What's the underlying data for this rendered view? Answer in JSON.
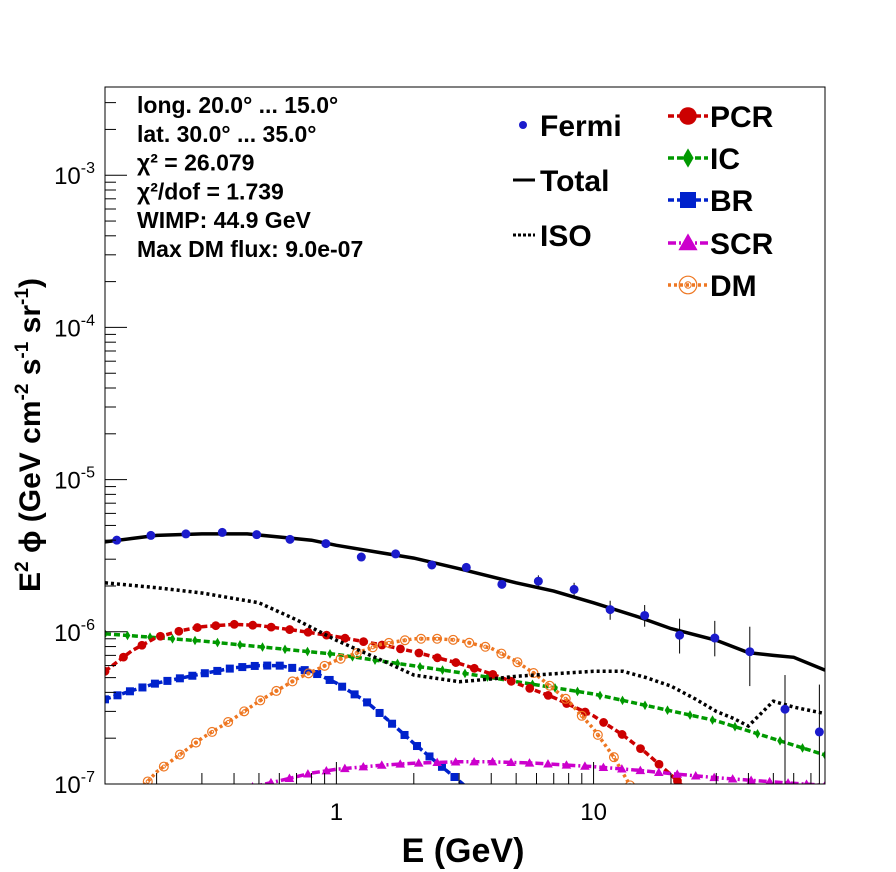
{
  "chart_data": {
    "type": "line",
    "xlabel": "E (GeV)",
    "ylabel_parts": [
      "E",
      "2",
      " ϕ (GeV cm",
      "-2",
      " s",
      "-1",
      " sr",
      "-1",
      ")"
    ],
    "xscale": "log",
    "yscale": "log",
    "xlim": [
      0.126,
      79.4
    ],
    "ylim": [
      1e-07,
      0.0038
    ],
    "x_ticks": [
      {
        "value": 1,
        "label": "1"
      },
      {
        "value": 10,
        "label": "10"
      }
    ],
    "y_ticks": [
      {
        "value": 1e-07,
        "base": "10",
        "exp": "-7"
      },
      {
        "value": 1e-06,
        "base": "10",
        "exp": "-6"
      },
      {
        "value": 1e-05,
        "base": "10",
        "exp": "-5"
      },
      {
        "value": 0.0001,
        "base": "10",
        "exp": "-4"
      },
      {
        "value": 0.001,
        "base": "10",
        "exp": "-3"
      }
    ],
    "info_lines": [
      "long. 20.0° ... 15.0°",
      "lat. 30.0° ... 35.0°",
      "χ² = 26.079",
      "χ²/dof = 1.739",
      "WIMP: 44.9 GeV",
      "Max DM flux: 9.0e-07"
    ],
    "legend": [
      {
        "label": "Fermi",
        "key": "fermi"
      },
      {
        "label": "Total",
        "key": "total"
      },
      {
        "label": "ISO",
        "key": "iso"
      },
      {
        "label": "PCR",
        "key": "pcr"
      },
      {
        "label": "IC",
        "key": "ic"
      },
      {
        "label": "BR",
        "key": "br"
      },
      {
        "label": "SCR",
        "key": "scr"
      },
      {
        "label": "DM",
        "key": "dm"
      }
    ],
    "data_points": {
      "name": "Fermi",
      "color": "#1b1bcc",
      "points": [
        {
          "x": 0.14,
          "y": 4e-06,
          "yerr": [
            4e-06,
            4e-06
          ]
        },
        {
          "x": 0.19,
          "y": 4.3e-06,
          "yerr": [
            4.3e-06,
            4.3e-06
          ]
        },
        {
          "x": 0.26,
          "y": 4.4e-06,
          "yerr": [
            4.4e-06,
            4.4e-06
          ]
        },
        {
          "x": 0.36,
          "y": 4.5e-06,
          "yerr": [
            4.5e-06,
            4.5e-06
          ]
        },
        {
          "x": 0.49,
          "y": 4.35e-06,
          "yerr": [
            4.35e-06,
            4.35e-06
          ]
        },
        {
          "x": 0.66,
          "y": 4.05e-06,
          "yerr": [
            4.05e-06,
            4.05e-06
          ]
        },
        {
          "x": 0.91,
          "y": 3.8e-06,
          "yerr": [
            3.8e-06,
            3.8e-06
          ]
        },
        {
          "x": 1.25,
          "y": 3.1e-06,
          "yerr": [
            3e-06,
            3.2e-06
          ]
        },
        {
          "x": 1.7,
          "y": 3.25e-06,
          "yerr": [
            3.15e-06,
            3.35e-06
          ]
        },
        {
          "x": 2.35,
          "y": 2.75e-06,
          "yerr": [
            2.65e-06,
            2.85e-06
          ]
        },
        {
          "x": 3.2,
          "y": 2.65e-06,
          "yerr": [
            2.55e-06,
            2.8e-06
          ]
        },
        {
          "x": 4.4,
          "y": 2.05e-06,
          "yerr": [
            1.95e-06,
            2.15e-06
          ]
        },
        {
          "x": 6.1,
          "y": 2.15e-06,
          "yerr": [
            1.95e-06,
            2.35e-06
          ]
        },
        {
          "x": 8.4,
          "y": 1.9e-06,
          "yerr": [
            1.7e-06,
            2.1e-06
          ]
        },
        {
          "x": 11.6,
          "y": 1.4e-06,
          "yerr": [
            1.2e-06,
            1.6e-06
          ]
        },
        {
          "x": 15.8,
          "y": 1.28e-06,
          "yerr": [
            1.08e-06,
            1.5e-06
          ]
        },
        {
          "x": 21.6,
          "y": 9.5e-07,
          "yerr": [
            7.2e-07,
            1.22e-06
          ]
        },
        {
          "x": 29.6,
          "y": 9.1e-07,
          "yerr": [
            6.9e-07,
            1.18e-06
          ]
        },
        {
          "x": 40.5,
          "y": 7.4e-07,
          "yerr": [
            4.4e-07,
            1.08e-06
          ]
        },
        {
          "x": 55.5,
          "y": 3.1e-07,
          "yerr": [
            1e-07,
            5.2e-07
          ]
        },
        {
          "x": 75.5,
          "y": 2.2e-07,
          "yerr": [
            1e-07,
            4.5e-07
          ]
        }
      ]
    },
    "series": [
      {
        "name": "Total",
        "key": "total",
        "color": "#000000",
        "style": "solid",
        "x": [
          0.126,
          0.16,
          0.2,
          0.3,
          0.45,
          0.6,
          0.8,
          1.0,
          1.5,
          2.0,
          3.0,
          5.0,
          7.0,
          10.0,
          15.0,
          20.0,
          30.0,
          40.0,
          50.0,
          60.0,
          79.4
        ],
        "y": [
          3.9e-06,
          4.1e-06,
          4.3e-06,
          4.4e-06,
          4.4e-06,
          4.2e-06,
          4e-06,
          3.7e-06,
          3.3e-06,
          3.05e-06,
          2.6e-06,
          2.1e-06,
          1.85e-06,
          1.55e-06,
          1.25e-06,
          1.05e-06,
          8.8e-07,
          7.3e-07,
          7e-07,
          6.8e-07,
          5.6e-07
        ]
      },
      {
        "name": "ISO",
        "key": "iso",
        "color": "#000000",
        "style": "dotted",
        "x": [
          0.126,
          0.2,
          0.3,
          0.5,
          0.7,
          1.0,
          1.5,
          2.0,
          3.0,
          4.0,
          5.0,
          7.0,
          10.0,
          13.0,
          16.0,
          20.0,
          25.0,
          30.0,
          35.0,
          40.0,
          50.0,
          60.0,
          79.4
        ],
        "y": [
          2.1e-06,
          1.95e-06,
          1.8e-06,
          1.55e-06,
          1.2e-06,
          8.8e-07,
          6.5e-07,
          5.2e-07,
          4.7e-07,
          4.9e-07,
          5.1e-07,
          5.3e-07,
          5.5e-07,
          5.5e-07,
          5e-07,
          4.4e-07,
          3.6e-07,
          3e-07,
          2.7e-07,
          2.4e-07,
          3.5e-07,
          3.2e-07,
          2.9e-07
        ]
      },
      {
        "name": "PCR",
        "key": "pcr",
        "color": "#cc0000",
        "style": "dashed",
        "x": [
          0.126,
          0.16,
          0.2,
          0.25,
          0.3,
          0.4,
          0.5,
          0.7,
          1.0,
          1.5,
          2.0,
          3.0,
          4.0,
          5.0,
          7.0,
          10.0,
          13.0,
          16.0,
          20.0,
          25.0
        ],
        "y": [
          5.5e-07,
          7.5e-07,
          9.2e-07,
          1.02e-06,
          1.08e-06,
          1.12e-06,
          1.1e-06,
          1.02e-06,
          9.3e-07,
          8.2e-07,
          7.4e-07,
          6.2e-07,
          5.3e-07,
          4.6e-07,
          3.7e-07,
          2.8e-07,
          2.1e-07,
          1.6e-07,
          1.15e-07,
          8e-08
        ]
      },
      {
        "name": "IC",
        "key": "ic",
        "color": "#009900",
        "style": "dashed",
        "x": [
          0.126,
          0.3,
          1.0,
          3.0,
          10.0,
          30.0,
          79.4
        ],
        "y": [
          9.7e-07,
          8.7e-07,
          7.1e-07,
          5.4e-07,
          3.9e-07,
          2.6e-07,
          1.55e-07
        ]
      },
      {
        "name": "BR",
        "key": "br",
        "color": "#0022cc",
        "style": "dashed",
        "x": [
          0.126,
          0.16,
          0.2,
          0.3,
          0.4,
          0.5,
          0.6,
          0.8,
          1.0,
          1.3,
          1.6,
          2.0,
          2.5,
          3.0,
          3.6,
          4.5
        ],
        "y": [
          3.6e-07,
          4.1e-07,
          4.6e-07,
          5.3e-07,
          5.8e-07,
          6e-07,
          6e-07,
          5.5e-07,
          4.6e-07,
          3.5e-07,
          2.6e-07,
          1.85e-07,
          1.35e-07,
          1.05e-07,
          8e-08,
          6e-08
        ]
      },
      {
        "name": "SCR",
        "key": "scr",
        "color": "#cc00cc",
        "style": "dashdot",
        "x": [
          0.4,
          0.6,
          0.8,
          1.0,
          1.5,
          2.0,
          3.0,
          4.0,
          6.0,
          10.0,
          15.0,
          20.0,
          30.0,
          40.0,
          55.0,
          79.4
        ],
        "y": [
          9e-08,
          1.05e-07,
          1.18e-07,
          1.25e-07,
          1.33e-07,
          1.37e-07,
          1.4e-07,
          1.4e-07,
          1.37e-07,
          1.3e-07,
          1.23e-07,
          1.17e-07,
          1.1e-07,
          1.06e-07,
          1.02e-07,
          9.8e-08
        ]
      },
      {
        "name": "DM",
        "key": "dm",
        "color": "#ee7722",
        "style": "dotted",
        "x": [
          0.16,
          0.2,
          0.3,
          0.4,
          0.5,
          0.7,
          1.0,
          1.5,
          2.0,
          2.5,
          3.0,
          4.0,
          5.0,
          6.0,
          8.0,
          10.0,
          12.0,
          14.0,
          16.0
        ],
        "y": [
          8e-08,
          1.2e-07,
          2e-07,
          2.7e-07,
          3.5e-07,
          4.9e-07,
          6.5e-07,
          8.3e-07,
          9e-07,
          9e-07,
          8.8e-07,
          7.8e-07,
          6.4e-07,
          5.2e-07,
          3.5e-07,
          2.3e-07,
          1.5e-07,
          9.5e-08,
          6e-08
        ]
      }
    ]
  }
}
